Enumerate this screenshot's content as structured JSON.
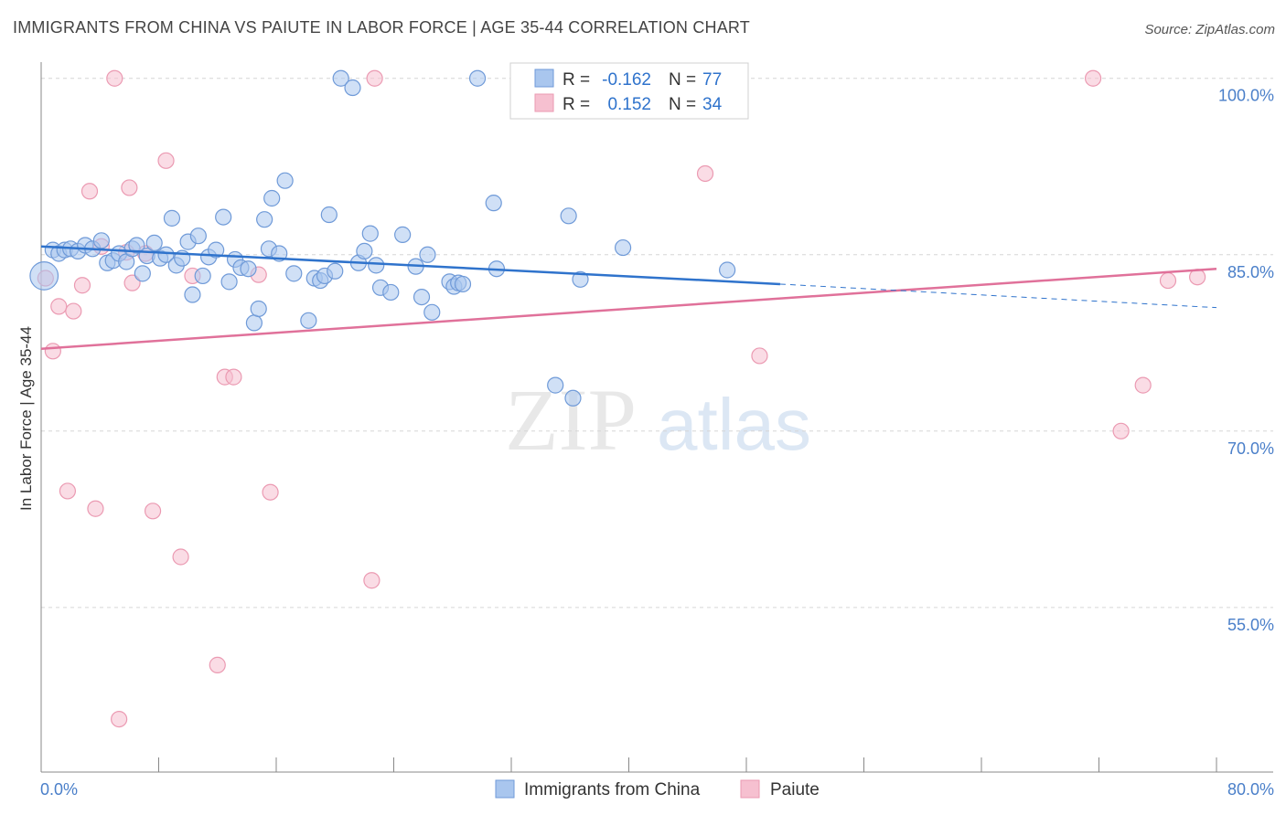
{
  "title": "IMMIGRANTS FROM CHINA VS PAIUTE IN LABOR FORCE | AGE 35-44 CORRELATION CHART",
  "source": "Source: ZipAtlas.com",
  "watermark": {
    "zip": "ZIP",
    "atlas": "atlas"
  },
  "colors": {
    "blue_fill": "#a9c6ee",
    "blue_stroke": "#6f9ad8",
    "blue_line": "#2f73cc",
    "pink_fill": "#f6c0d0",
    "pink_stroke": "#eb9ab2",
    "pink_line": "#e0719a",
    "tick_text": "#4a7fc9",
    "grid": "#d6d6d6"
  },
  "chart_data": {
    "type": "scatter",
    "ylabel": "In Labor Force | Age 35-44",
    "xlim": [
      0,
      80
    ],
    "ylim": [
      41,
      102
    ],
    "x_tick_labels": [
      {
        "value": 0,
        "label": "0.0%"
      },
      {
        "value": 80,
        "label": "80.0%"
      }
    ],
    "x_tick_marks": [
      0,
      8,
      16,
      24,
      32,
      40,
      48,
      56,
      64,
      72,
      80
    ],
    "y_ticks": [
      {
        "value": 100,
        "label": "100.0%"
      },
      {
        "value": 85,
        "label": "85.0%"
      },
      {
        "value": 70,
        "label": "70.0%"
      },
      {
        "value": 55,
        "label": "55.0%"
      }
    ],
    "legend": [
      {
        "series": "Immigrants from China",
        "r_label": "R =",
        "r_value": "-0.162",
        "n_label": "N =",
        "n_value": "77"
      },
      {
        "series": "Paiute",
        "r_label": "R =",
        "r_value": "0.152",
        "n_label": "N =",
        "n_value": "34"
      }
    ],
    "series": [
      {
        "name": "Immigrants from China",
        "color": "blue",
        "trend": {
          "x0": 0,
          "y0": 85.7,
          "x1": 50.3,
          "y1": 82.5,
          "dash_x1": 80,
          "dash_y1": 80.5
        },
        "points": [
          [
            0.2,
            83.2,
            1.8
          ],
          [
            0.8,
            85.4,
            1
          ],
          [
            1.2,
            85.1,
            1
          ],
          [
            1.6,
            85.4,
            1
          ],
          [
            2.0,
            85.5,
            1
          ],
          [
            2.5,
            85.3,
            1
          ],
          [
            3.0,
            85.8,
            1
          ],
          [
            3.5,
            85.5,
            1
          ],
          [
            4.1,
            86.2,
            1
          ],
          [
            4.5,
            84.3,
            1
          ],
          [
            4.9,
            84.5,
            1
          ],
          [
            5.3,
            85.1,
            1
          ],
          [
            5.8,
            84.4,
            1
          ],
          [
            6.2,
            85.5,
            1
          ],
          [
            6.5,
            85.8,
            1
          ],
          [
            6.9,
            83.4,
            1
          ],
          [
            7.2,
            84.9,
            1
          ],
          [
            7.7,
            86.0,
            1
          ],
          [
            8.1,
            84.7,
            1
          ],
          [
            8.5,
            85.0,
            1
          ],
          [
            8.9,
            88.1,
            1
          ],
          [
            9.2,
            84.1,
            1
          ],
          [
            9.6,
            84.7,
            1
          ],
          [
            10.0,
            86.1,
            1
          ],
          [
            10.3,
            81.6,
            1
          ],
          [
            10.7,
            86.6,
            1
          ],
          [
            11.0,
            83.2,
            1
          ],
          [
            11.4,
            84.8,
            1
          ],
          [
            11.9,
            85.4,
            1
          ],
          [
            12.4,
            88.2,
            1
          ],
          [
            12.8,
            82.7,
            1
          ],
          [
            13.2,
            84.6,
            1
          ],
          [
            13.6,
            83.9,
            1
          ],
          [
            14.1,
            83.8,
            1
          ],
          [
            14.5,
            79.2,
            1
          ],
          [
            14.8,
            80.4,
            1
          ],
          [
            15.2,
            88.0,
            1
          ],
          [
            15.5,
            85.5,
            1
          ],
          [
            15.7,
            89.8,
            1
          ],
          [
            16.2,
            85.1,
            1
          ],
          [
            16.6,
            91.3,
            1
          ],
          [
            17.2,
            83.4,
            1
          ],
          [
            18.2,
            79.4,
            1
          ],
          [
            18.6,
            83.0,
            1
          ],
          [
            19.0,
            82.8,
            1
          ],
          [
            19.3,
            83.2,
            1
          ],
          [
            19.6,
            88.4,
            1
          ],
          [
            20.0,
            83.6,
            1
          ],
          [
            20.4,
            100.0,
            1
          ],
          [
            21.2,
            99.2,
            1
          ],
          [
            21.6,
            84.3,
            1
          ],
          [
            22.0,
            85.3,
            1
          ],
          [
            22.4,
            86.8,
            1
          ],
          [
            22.8,
            84.1,
            1
          ],
          [
            23.1,
            82.2,
            1
          ],
          [
            23.8,
            81.8,
            1
          ],
          [
            24.6,
            86.7,
            1
          ],
          [
            25.5,
            84.0,
            1
          ],
          [
            25.9,
            81.4,
            1
          ],
          [
            26.3,
            85.0,
            1
          ],
          [
            26.6,
            80.1,
            1
          ],
          [
            27.8,
            82.7,
            1
          ],
          [
            28.1,
            82.3,
            1
          ],
          [
            28.4,
            82.6,
            1
          ],
          [
            28.7,
            82.5,
            1
          ],
          [
            29.7,
            100.0,
            1
          ],
          [
            30.8,
            89.4,
            1
          ],
          [
            31.0,
            83.8,
            1
          ],
          [
            35.0,
            73.9,
            1
          ],
          [
            35.9,
            88.3,
            1
          ],
          [
            36.2,
            72.8,
            1
          ],
          [
            36.7,
            82.9,
            1
          ],
          [
            39.6,
            85.6,
            1
          ],
          [
            46.7,
            83.7,
            1
          ]
        ]
      },
      {
        "name": "Paiute",
        "color": "pink",
        "trend": {
          "x0": 0,
          "y0": 77.0,
          "x1": 80,
          "y1": 83.8
        },
        "points": [
          [
            0.3,
            83.0,
            1
          ],
          [
            0.8,
            76.8,
            1
          ],
          [
            1.2,
            80.6,
            1
          ],
          [
            1.8,
            64.9,
            1
          ],
          [
            2.2,
            80.2,
            1
          ],
          [
            2.8,
            82.4,
            1
          ],
          [
            3.3,
            90.4,
            1
          ],
          [
            3.7,
            63.4,
            1
          ],
          [
            4.1,
            85.7,
            1
          ],
          [
            5.0,
            100.0,
            1
          ],
          [
            5.3,
            45.5,
            1
          ],
          [
            5.8,
            85.2,
            1
          ],
          [
            6.0,
            90.7,
            1
          ],
          [
            6.2,
            82.6,
            1
          ],
          [
            7.1,
            85.1,
            1
          ],
          [
            7.6,
            63.2,
            1
          ],
          [
            8.5,
            93.0,
            1
          ],
          [
            9.5,
            59.3,
            1
          ],
          [
            10.3,
            83.2,
            1
          ],
          [
            12.0,
            50.1,
            1
          ],
          [
            12.5,
            74.6,
            1
          ],
          [
            13.1,
            74.6,
            1
          ],
          [
            14.8,
            83.3,
            1
          ],
          [
            15.6,
            64.8,
            1
          ],
          [
            22.5,
            57.3,
            1
          ],
          [
            22.7,
            100.0,
            1
          ],
          [
            45.2,
            91.9,
            1
          ],
          [
            48.9,
            76.4,
            1
          ],
          [
            71.6,
            100.0,
            1
          ],
          [
            73.5,
            70.0,
            1
          ],
          [
            75.0,
            73.9,
            1
          ],
          [
            76.7,
            82.8,
            1
          ],
          [
            78.7,
            83.1,
            1
          ]
        ]
      }
    ],
    "bottom_legend": [
      "Immigrants from China",
      "Paiute"
    ]
  }
}
